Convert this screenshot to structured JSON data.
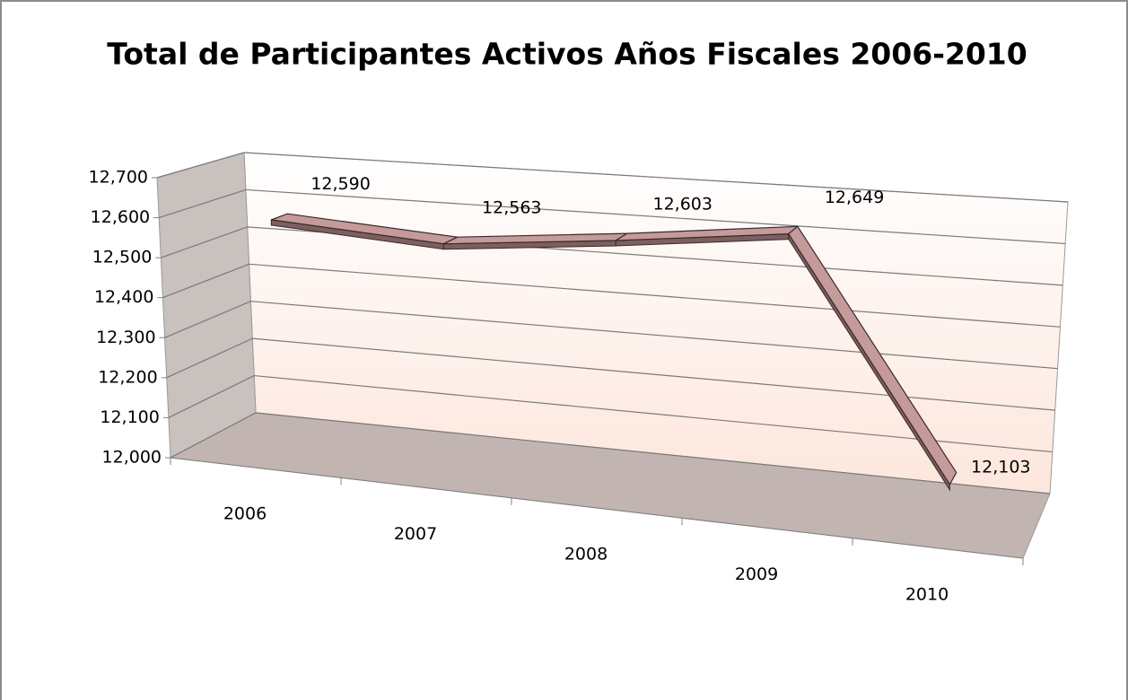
{
  "chart_data": {
    "type": "line",
    "title": "Total de Participantes Activos Años Fiscales 2006-2010",
    "categories": [
      "2006",
      "2007",
      "2008",
      "2009",
      "2010"
    ],
    "values": [
      12590,
      12563,
      12603,
      12649,
      12103
    ],
    "value_labels": [
      "12,590",
      "12,563",
      "12,603",
      "12,649",
      "12,103"
    ],
    "color": "#c49a9a",
    "ylim": [
      12000,
      12700
    ],
    "yticks": [
      {
        "value": 12000,
        "label": "12,000"
      },
      {
        "value": 12100,
        "label": "12,100"
      },
      {
        "value": 12200,
        "label": "12,200"
      },
      {
        "value": 12300,
        "label": "12,300"
      },
      {
        "value": 12400,
        "label": "12,400"
      },
      {
        "value": 12500,
        "label": "12,500"
      },
      {
        "value": 12600,
        "label": "12,600"
      },
      {
        "value": 12700,
        "label": "12,700"
      }
    ],
    "grid": true
  }
}
